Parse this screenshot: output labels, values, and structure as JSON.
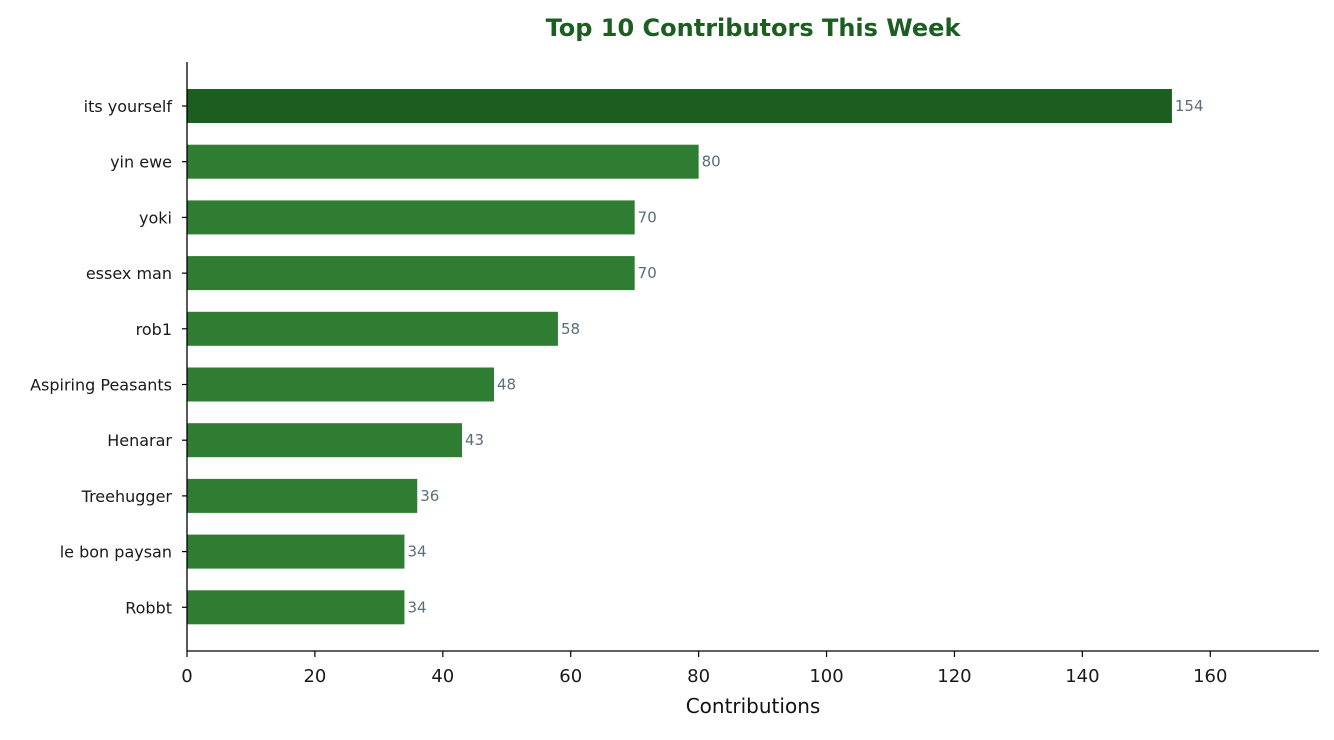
{
  "chart_data": {
    "type": "bar",
    "orientation": "horizontal",
    "title": "Top 10 Contributors This Week",
    "xlabel": "Contributions",
    "ylabel": "",
    "xlim": [
      0,
      177
    ],
    "xticks": [
      0,
      20,
      40,
      60,
      80,
      100,
      120,
      140,
      160
    ],
    "grid": false,
    "legend": "none",
    "categories": [
      "its yourself",
      "yin ewe",
      "yoki",
      "essex man",
      "rob1",
      "Aspiring Peasants",
      "Henarar",
      "Treehugger",
      "le bon paysan",
      "Robbt"
    ],
    "values": [
      154,
      80,
      70,
      70,
      58,
      48,
      43,
      36,
      34,
      34
    ],
    "data_labels": [
      "154",
      "80",
      "70",
      "70",
      "58",
      "48",
      "43",
      "36",
      "34",
      "34"
    ],
    "colors": {
      "top_bar": "#1b5e20",
      "bar": "#2e7d32",
      "title": "#1b5e20",
      "value_label": "#5a6e7a",
      "axis": "#000000"
    }
  }
}
